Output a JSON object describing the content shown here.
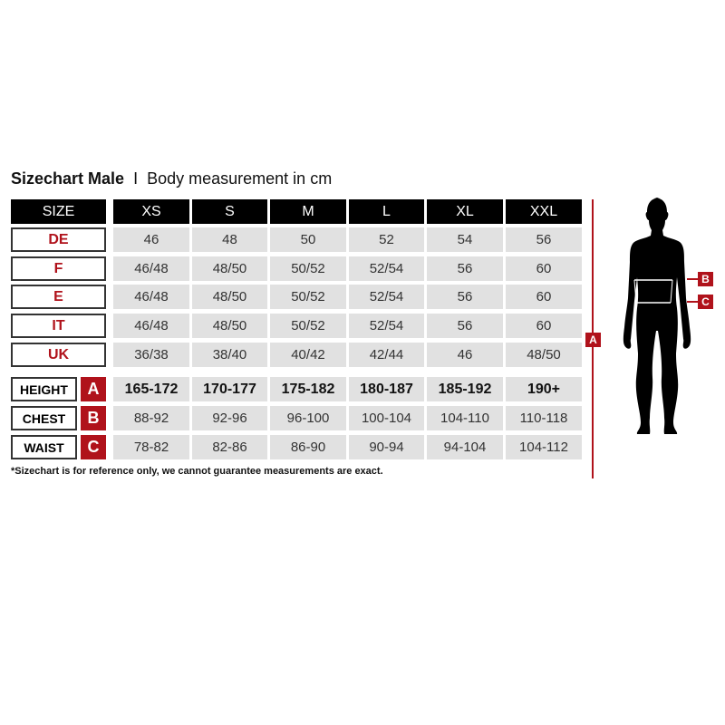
{
  "title": {
    "bold": "Sizechart Male",
    "separator": "I",
    "subtitle": "Body measurement in cm"
  },
  "header": {
    "label": "SIZE",
    "sizes": [
      "XS",
      "S",
      "M",
      "L",
      "XL",
      "XXL"
    ]
  },
  "country_rows": [
    {
      "label": "DE",
      "values": [
        "46",
        "48",
        "50",
        "52",
        "54",
        "56"
      ]
    },
    {
      "label": "F",
      "values": [
        "46/48",
        "48/50",
        "50/52",
        "52/54",
        "56",
        "60"
      ]
    },
    {
      "label": "E",
      "values": [
        "46/48",
        "48/50",
        "50/52",
        "52/54",
        "56",
        "60"
      ]
    },
    {
      "label": "IT",
      "values": [
        "46/48",
        "48/50",
        "50/52",
        "52/54",
        "56",
        "60"
      ]
    },
    {
      "label": "UK",
      "values": [
        "36/38",
        "38/40",
        "40/42",
        "42/44",
        "46",
        "48/50"
      ]
    }
  ],
  "measure_rows": [
    {
      "label": "HEIGHT",
      "badge": "A",
      "values": [
        "165-172",
        "170-177",
        "175-182",
        "180-187",
        "185-192",
        "190+"
      ]
    },
    {
      "label": "CHEST",
      "badge": "B",
      "values": [
        "88-92",
        "92-96",
        "96-100",
        "100-104",
        "104-110",
        "110-118"
      ]
    },
    {
      "label": "WAIST",
      "badge": "C",
      "values": [
        "78-82",
        "82-86",
        "86-90",
        "90-94",
        "94-104",
        "104-112"
      ]
    }
  ],
  "note": "*Sizechart is for reference only, we cannot guarantee measurements are exact.",
  "figure": {
    "height_marker": "A",
    "chest_marker": "B",
    "waist_marker": "C"
  },
  "colors": {
    "accent": "#b0121b",
    "header": "#000000",
    "cell": "#e1e1e1"
  }
}
